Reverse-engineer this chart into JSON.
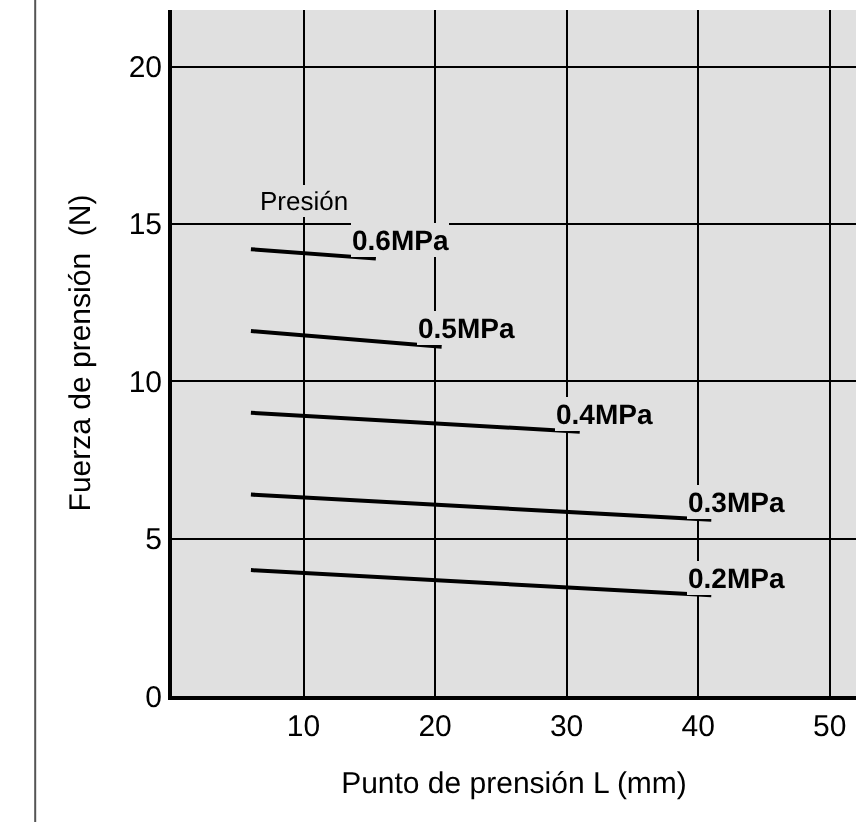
{
  "chart_data": {
    "type": "line",
    "xlabel": "Punto de prensión L (mm)",
    "ylabel": "Fuerza de prensión  (N)",
    "xlim": [
      0,
      52
    ],
    "ylim": [
      0,
      21.8
    ],
    "xticks": [
      10,
      20,
      30,
      40,
      50
    ],
    "yticks": [
      0,
      5,
      10,
      15,
      20
    ],
    "grid": true,
    "legend": false,
    "marker": "none",
    "line_style": "solid",
    "annotations": [
      "Presión"
    ],
    "series": [
      {
        "name": "0.6MPa",
        "color": "#000000",
        "x": [
          6,
          15.5
        ],
        "values": [
          14.2,
          13.9
        ]
      },
      {
        "name": "0.5MPa",
        "color": "#000000",
        "x": [
          6,
          20.5
        ],
        "values": [
          11.6,
          11.1
        ]
      },
      {
        "name": "0.4MPa",
        "color": "#000000",
        "x": [
          6,
          31
        ],
        "values": [
          9.0,
          8.4
        ]
      },
      {
        "name": "0.3MPa",
        "color": "#000000",
        "x": [
          6,
          41
        ],
        "values": [
          6.4,
          5.6
        ]
      },
      {
        "name": "0.2MPa",
        "color": "#000000",
        "x": [
          6,
          41
        ],
        "values": [
          4.0,
          3.2
        ]
      }
    ]
  }
}
